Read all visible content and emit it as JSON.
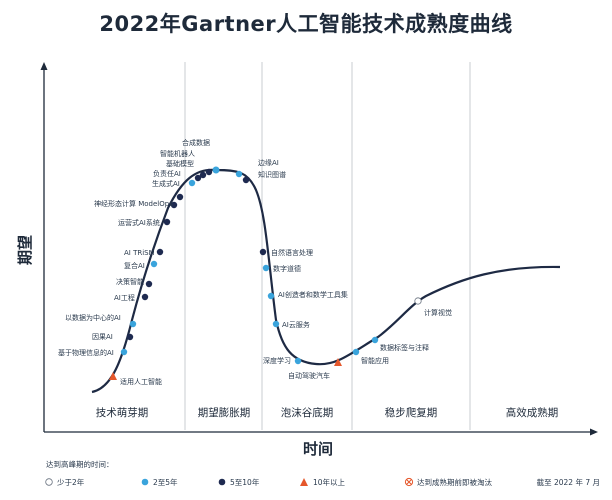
{
  "title": "2022年Gartner人工智能技术成熟度曲线",
  "y_axis_label": "期望",
  "x_axis_label": "时间",
  "phases": [
    "技术萌芽期",
    "期望膨胀期",
    "泡沫谷底期",
    "稳步爬复期",
    "高效成熟期"
  ],
  "colors": {
    "curve": "#1e2a44",
    "light_blue": "#3aa4dc",
    "dark_blue": "#1e2a50",
    "orange": "#e5572b",
    "white_dot": "#ffffff",
    "divider": "#c8ccd2",
    "axis": "#1e2a3a"
  },
  "technologies": [
    {
      "name": "适用人工智能",
      "category": "10年以上"
    },
    {
      "name": "基于物理信息的AI",
      "category": "5至10年"
    },
    {
      "name": "因果AI",
      "category": "5至10年"
    },
    {
      "name": "以数据为中心的AI",
      "category": "2至5年"
    },
    {
      "name": "AI工程",
      "category": "5至10年"
    },
    {
      "name": "决策智能",
      "category": "5至10年"
    },
    {
      "name": "复合AI",
      "category": "2至5年"
    },
    {
      "name": "AI TRiSM",
      "category": "5至10年"
    },
    {
      "name": "运营式AI系统",
      "category": "5至10年"
    },
    {
      "name": "神经形态计算 ModelOps",
      "category": "5至10年"
    },
    {
      "name": "生成式AI",
      "category": "5至10年"
    },
    {
      "name": "负责任AI",
      "category": "5至10年"
    },
    {
      "name": "基础模型",
      "category": "5至10年"
    },
    {
      "name": "智能机器人",
      "category": "5至10年"
    },
    {
      "name": "合成数据",
      "category": "2至5年"
    },
    {
      "name": "边缘AI",
      "category": "2至5年"
    },
    {
      "name": "知识图谱",
      "category": "5至10年"
    },
    {
      "name": "自然语言处理",
      "category": "5至10年"
    },
    {
      "name": "数字道德",
      "category": "2至5年"
    },
    {
      "name": "AI创造者和数学工具集",
      "category": "2至5年"
    },
    {
      "name": "AI云服务",
      "category": "2至5年"
    },
    {
      "name": "深度学习",
      "category": "2至5年"
    },
    {
      "name": "自动驾驶汽车",
      "category": "10年以上"
    },
    {
      "name": "智能应用",
      "category": "2至5年"
    },
    {
      "name": "数据标签与注释",
      "category": "2至5年"
    },
    {
      "name": "计算视觉",
      "category": "少于2年"
    }
  ],
  "legend": {
    "heading": "达到高峰期的时间：",
    "items": [
      {
        "label": "少于2年",
        "marker": "white"
      },
      {
        "label": "2至5年",
        "marker": "light_blue"
      },
      {
        "label": "5至10年",
        "marker": "dark_blue"
      },
      {
        "label": "10年以上",
        "marker": "orange"
      },
      {
        "label": "达到成熟期前即被淘汰",
        "marker": "obsolete"
      }
    ],
    "date_note": "截至 2022 年 7 月"
  }
}
